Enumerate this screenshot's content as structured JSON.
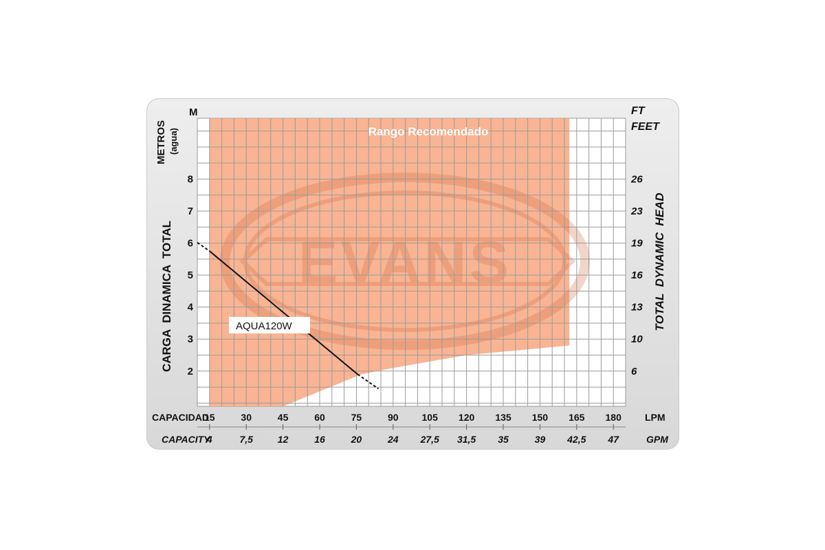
{
  "chart_data": {
    "type": "line",
    "title": "Rango Recomendado",
    "y_unit_label": "M",
    "y_axis_title_top": "METROS",
    "y_axis_title_sub": "(agua)",
    "ylabel": "CARGA  DINAMICA  TOTAL",
    "y2_unit_label_1": "FT",
    "y2_unit_label_2": "FEET",
    "y2label": "TOTAL  DYNAMIC  HEAD",
    "xlabel": "CAPACIDAD",
    "xlabel_secondary": "CAPACITY",
    "x_unit": "LPM",
    "x_unit_secondary": "GPM",
    "xlim": [
      10,
      185
    ],
    "ylim": [
      0.9,
      9.9
    ],
    "x_ticks": [
      15,
      30,
      45,
      60,
      75,
      90,
      105,
      120,
      135,
      150,
      165,
      180
    ],
    "x_tick_labels": [
      "15",
      "30",
      "45",
      "60",
      "75",
      "90",
      "105",
      "120",
      "135",
      "150",
      "165",
      "180"
    ],
    "x2_tick_labels": [
      "4",
      "7,5",
      "12",
      "16",
      "20",
      "24",
      "27,5",
      "31,5",
      "35",
      "39",
      "42,5",
      "47"
    ],
    "y_ticks": [
      2,
      3,
      4,
      5,
      6,
      7,
      8
    ],
    "y_tick_labels": [
      "2",
      "3",
      "4",
      "5",
      "6",
      "7",
      "8"
    ],
    "y2_tick_labels": [
      "6",
      "10",
      "13",
      "16",
      "19",
      "23",
      "26"
    ],
    "recommended_range": {
      "x": [
        15,
        162
      ],
      "lower_boundary": [
        {
          "x": 45,
          "y": 0.9
        },
        {
          "x": 77,
          "y": 1.9
        },
        {
          "x": 90,
          "y": 2.1
        },
        {
          "x": 120,
          "y": 2.5
        },
        {
          "x": 162,
          "y": 2.8
        }
      ],
      "color": "#f9b08d"
    },
    "series": [
      {
        "name": "AQUA120W",
        "solid": [
          {
            "x": 15,
            "y": 5.75
          },
          {
            "x": 75.5,
            "y": 1.9
          }
        ],
        "dashed_start": [
          {
            "x": 0,
            "y": 6.55
          },
          {
            "x": 15,
            "y": 5.75
          }
        ],
        "dashed_end": [
          {
            "x": 75.5,
            "y": 1.9
          },
          {
            "x": 84,
            "y": 1.45
          }
        ],
        "color": "#111111"
      }
    ],
    "watermark": "EVANS",
    "grid": true,
    "legend": "none"
  }
}
